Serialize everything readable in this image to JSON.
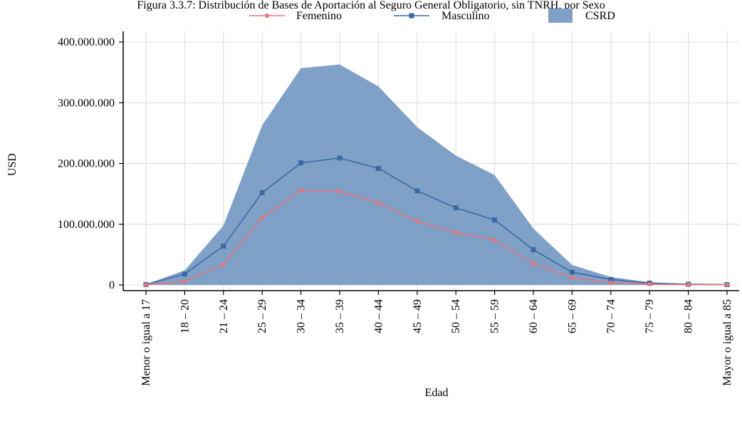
{
  "colors": {
    "femenino": "#e8737a",
    "masculino": "#3a6aa3",
    "csrd_fill": "#7fa1c8",
    "grid": "#dcdcdc"
  },
  "chart_data": {
    "type": "line",
    "title": "Figura 3.3.7: Distribución de Bases de Aportación al Seguro General Obligatorio, sin TNRH, por Sexo",
    "xlabel": "Edad",
    "ylabel": "USD",
    "categories": [
      "Menor o igual a 17",
      "18 – 20",
      "21 – 24",
      "25 – 29",
      "30 – 34",
      "35 – 39",
      "40 – 44",
      "45 – 49",
      "50 – 54",
      "55 – 59",
      "60 – 64",
      "65 – 69",
      "70 – 74",
      "75 – 79",
      "80 – 84",
      "Mayor o igual a 85"
    ],
    "ylim": [
      0,
      400000000
    ],
    "yticks": [
      0,
      100000000,
      200000000,
      300000000,
      400000000
    ],
    "ytick_labels": [
      "0",
      "100.000.000",
      "200.000.000",
      "300.000.000",
      "400.000.000"
    ],
    "grid": true,
    "legend_position": "top",
    "series": [
      {
        "name": "Femenino",
        "type": "line",
        "marker": "circle",
        "values": [
          500000,
          6000000,
          34000000,
          111000000,
          156000000,
          154000000,
          135000000,
          105000000,
          86000000,
          74000000,
          35000000,
          12000000,
          4000000,
          1500000,
          600000,
          300000
        ]
      },
      {
        "name": "Masculino",
        "type": "line",
        "marker": "square",
        "values": [
          700000,
          18000000,
          64000000,
          152000000,
          201000000,
          209000000,
          192000000,
          155000000,
          127000000,
          107000000,
          58000000,
          21000000,
          9000000,
          3000000,
          1200000,
          600000
        ]
      },
      {
        "name": "CSRD",
        "type": "area",
        "values": [
          1200000,
          24000000,
          98000000,
          263000000,
          357000000,
          363000000,
          327000000,
          260000000,
          213000000,
          181000000,
          93000000,
          33000000,
          13000000,
          4500000,
          1800000,
          900000
        ]
      }
    ]
  }
}
